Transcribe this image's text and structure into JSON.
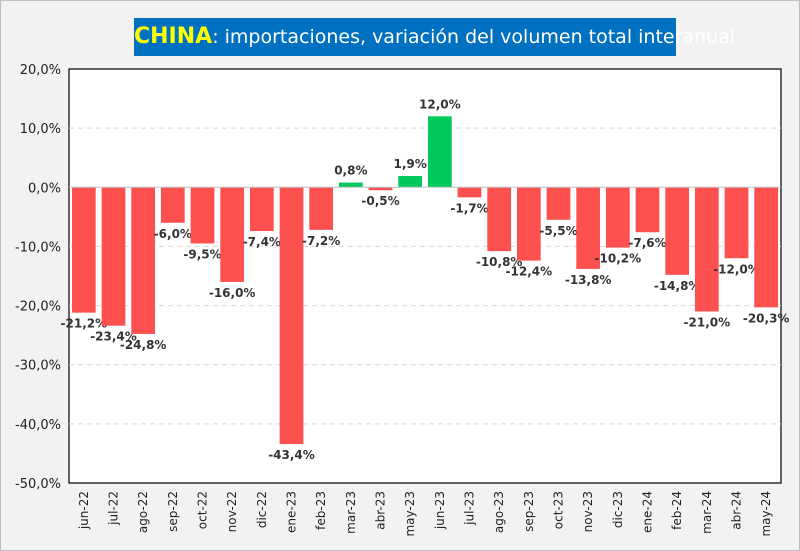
{
  "chart_data": {
    "type": "bar",
    "title_highlight": "CHINA",
    "title_rest": ": importaciones, variación del volumen total interanual",
    "xlabel": "",
    "ylabel": "",
    "ylim": [
      -50,
      20
    ],
    "yticks": [
      20,
      10,
      0,
      -10,
      -20,
      -30,
      -40,
      -50
    ],
    "ytick_labels": [
      "20,0%",
      "10,0%",
      "0,0%",
      "-10,0%",
      "-20,0%",
      "-30,0%",
      "-40,0%",
      "-50,0%"
    ],
    "grid": true,
    "legend": "none",
    "categories": [
      "jun-22",
      "jul-22",
      "ago-22",
      "sep-22",
      "oct-22",
      "nov-22",
      "dic-22",
      "ene-23",
      "feb-23",
      "mar-23",
      "abr-23",
      "may-23",
      "jun-23",
      "jul-23",
      "ago-23",
      "sep-23",
      "oct-23",
      "nov-23",
      "dic-23",
      "ene-24",
      "feb-24",
      "mar-24",
      "abr-24",
      "may-24"
    ],
    "values": [
      -21.2,
      -23.4,
      -24.8,
      -6.0,
      -9.5,
      -16.0,
      -7.4,
      -43.4,
      -7.2,
      0.8,
      -0.5,
      1.9,
      12.0,
      -1.7,
      -10.8,
      -12.4,
      -5.5,
      -13.8,
      -10.2,
      -7.6,
      -14.8,
      -21.0,
      -12.0,
      -20.3
    ],
    "data_labels": [
      "-21,2%",
      "-23,4%",
      "-24,8%",
      "-6,0%",
      "-9,5%",
      "-16,0%",
      "-7,4%",
      "-43,4%",
      "-7,2%",
      "0,8%",
      "-0,5%",
      "1,9%",
      "12,0%",
      "-1,7%",
      "-10,8%",
      "-12,4%",
      "-5,5%",
      "-13,8%",
      "-10,2%",
      "-7,6%",
      "-14,8%",
      "-21,0%",
      "-12,0%",
      "-20,3%"
    ],
    "colors": {
      "negative": "#ff5050",
      "positive": "#00c85a",
      "title_bg": "#0070c0"
    }
  }
}
